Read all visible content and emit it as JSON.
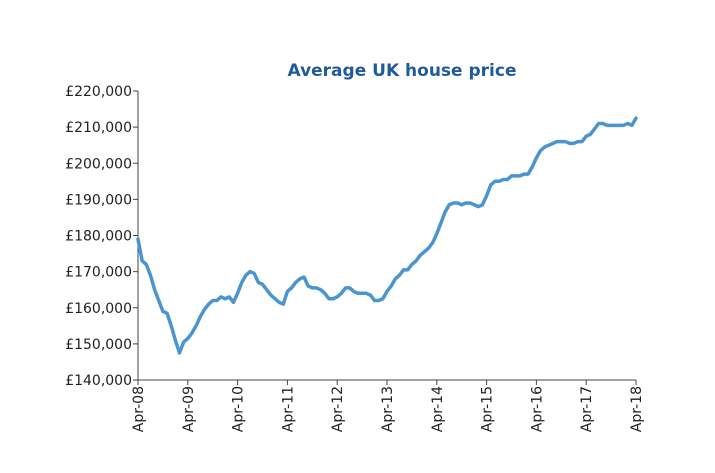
{
  "chart_data": {
    "type": "line",
    "title": "Average UK house price",
    "categories": [
      "Apr-08",
      null,
      null,
      null,
      null,
      null,
      null,
      null,
      null,
      null,
      null,
      null,
      "Apr-09",
      null,
      null,
      null,
      null,
      null,
      null,
      null,
      null,
      null,
      null,
      null,
      "Apr-10",
      null,
      null,
      null,
      null,
      null,
      null,
      null,
      null,
      null,
      null,
      null,
      "Apr-11",
      null,
      null,
      null,
      null,
      null,
      null,
      null,
      null,
      null,
      null,
      null,
      "Apr-12",
      null,
      null,
      null,
      null,
      null,
      null,
      null,
      null,
      null,
      null,
      null,
      "Apr-13",
      null,
      null,
      null,
      null,
      null,
      null,
      null,
      null,
      null,
      null,
      null,
      "Apr-14",
      null,
      null,
      null,
      null,
      null,
      null,
      null,
      null,
      null,
      null,
      null,
      "Apr-15",
      null,
      null,
      null,
      null,
      null,
      null,
      null,
      null,
      null,
      null,
      null,
      "Apr-16",
      null,
      null,
      null,
      null,
      null,
      null,
      null,
      null,
      null,
      null,
      null,
      "Apr-17",
      null,
      null,
      null,
      null,
      null,
      null,
      null,
      null,
      null,
      null,
      null,
      "Apr-18"
    ],
    "series": [
      {
        "color": "#4a94d0",
        "values": [
          179000,
          173000,
          172000,
          169000,
          165000,
          162000,
          159000,
          158500,
          155000,
          151000,
          147500,
          150500,
          151500,
          153000,
          155000,
          157500,
          159500,
          161000,
          162000,
          162000,
          163000,
          162500,
          163000,
          161500,
          164000,
          167000,
          169000,
          170000,
          169500,
          167000,
          166500,
          165000,
          163500,
          162500,
          161500,
          161000,
          164500,
          165500,
          167000,
          168000,
          168500,
          166000,
          165500,
          165500,
          165000,
          164000,
          162500,
          162500,
          163000,
          164000,
          165500,
          165500,
          164500,
          164000,
          164000,
          164000,
          163500,
          162000,
          162000,
          162500,
          164500,
          166000,
          168000,
          169000,
          170500,
          170500,
          172000,
          173000,
          174500,
          175500,
          176500,
          178000,
          180500,
          183500,
          186500,
          188500,
          189000,
          189000,
          188500,
          189000,
          189000,
          188500,
          188000,
          188500,
          191000,
          194000,
          195000,
          195000,
          195500,
          195500,
          196500,
          196500,
          196500,
          197000,
          197000,
          199000,
          201500,
          203500,
          204500,
          205000,
          205500,
          206000,
          206000,
          206000,
          205500,
          205500,
          206000,
          206000,
          207500,
          208000,
          209500,
          211000,
          211000,
          210500,
          210500,
          210500,
          210500,
          210500,
          211000,
          210500,
          212500
        ]
      }
    ],
    "ylim": [
      140000,
      220000
    ],
    "yticks": [
      {
        "value": 140000,
        "label": "£140,000"
      },
      {
        "value": 150000,
        "label": "£150,000"
      },
      {
        "value": 160000,
        "label": "£160,000"
      },
      {
        "value": 170000,
        "label": "£170,000"
      },
      {
        "value": 180000,
        "label": "£180,000"
      },
      {
        "value": 190000,
        "label": "£190,000"
      },
      {
        "value": 200000,
        "label": "£200,000"
      },
      {
        "value": 210000,
        "label": "£210,000"
      },
      {
        "value": 220000,
        "label": "£220,000"
      }
    ],
    "grid": false
  }
}
